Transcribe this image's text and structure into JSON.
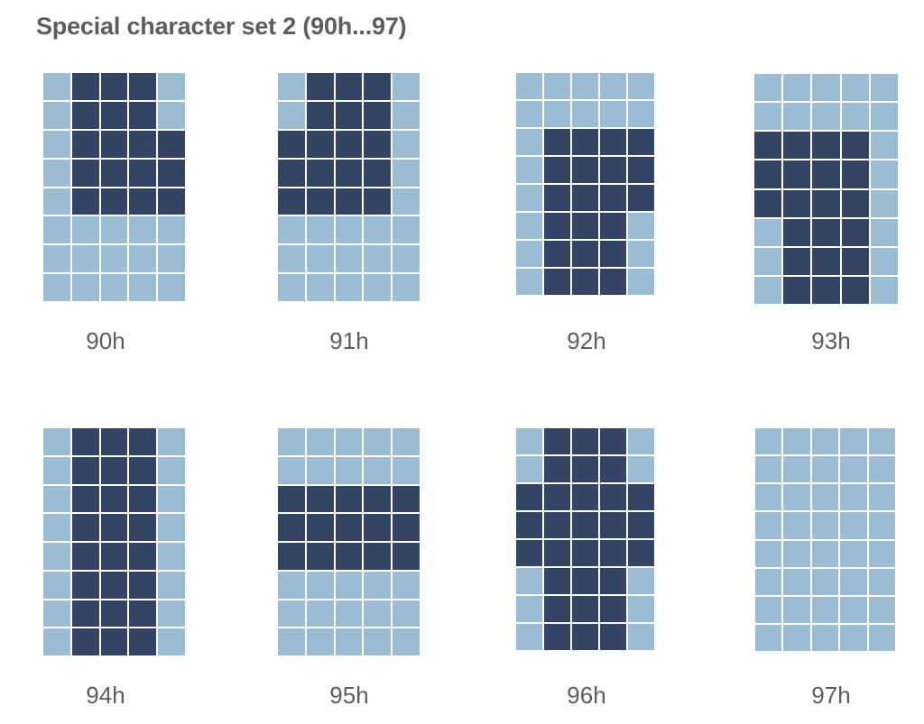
{
  "title": "Special character set 2 (90h...97)",
  "colors": {
    "pixel_on": "#344465",
    "pixel_off": "#9bbdd4",
    "text": "#5d5d5d"
  },
  "characters": [
    {
      "code": "90h",
      "rows": [
        "01110",
        "01110",
        "01111",
        "01111",
        "01111",
        "00000",
        "00000",
        "00000"
      ]
    },
    {
      "code": "91h",
      "rows": [
        "01110",
        "01110",
        "11110",
        "11110",
        "11110",
        "00000",
        "00000",
        "00000"
      ]
    },
    {
      "code": "92h",
      "rows": [
        "00000",
        "00000",
        "01111",
        "01111",
        "01111",
        "01110",
        "01110",
        "01110"
      ]
    },
    {
      "code": "93h",
      "rows": [
        "00000",
        "00000",
        "11110",
        "11110",
        "11110",
        "01110",
        "01110",
        "01110"
      ]
    },
    {
      "code": "94h",
      "rows": [
        "01110",
        "01110",
        "01110",
        "01110",
        "01110",
        "01110",
        "01110",
        "01110"
      ]
    },
    {
      "code": "95h",
      "rows": [
        "00000",
        "00000",
        "11111",
        "11111",
        "11111",
        "00000",
        "00000",
        "00000"
      ]
    },
    {
      "code": "96h",
      "rows": [
        "01110",
        "01110",
        "11111",
        "11111",
        "11111",
        "01110",
        "01110",
        "01110"
      ]
    },
    {
      "code": "97h",
      "rows": [
        "00000",
        "00000",
        "00000",
        "00000",
        "00000",
        "00000",
        "00000",
        "00000"
      ]
    }
  ]
}
